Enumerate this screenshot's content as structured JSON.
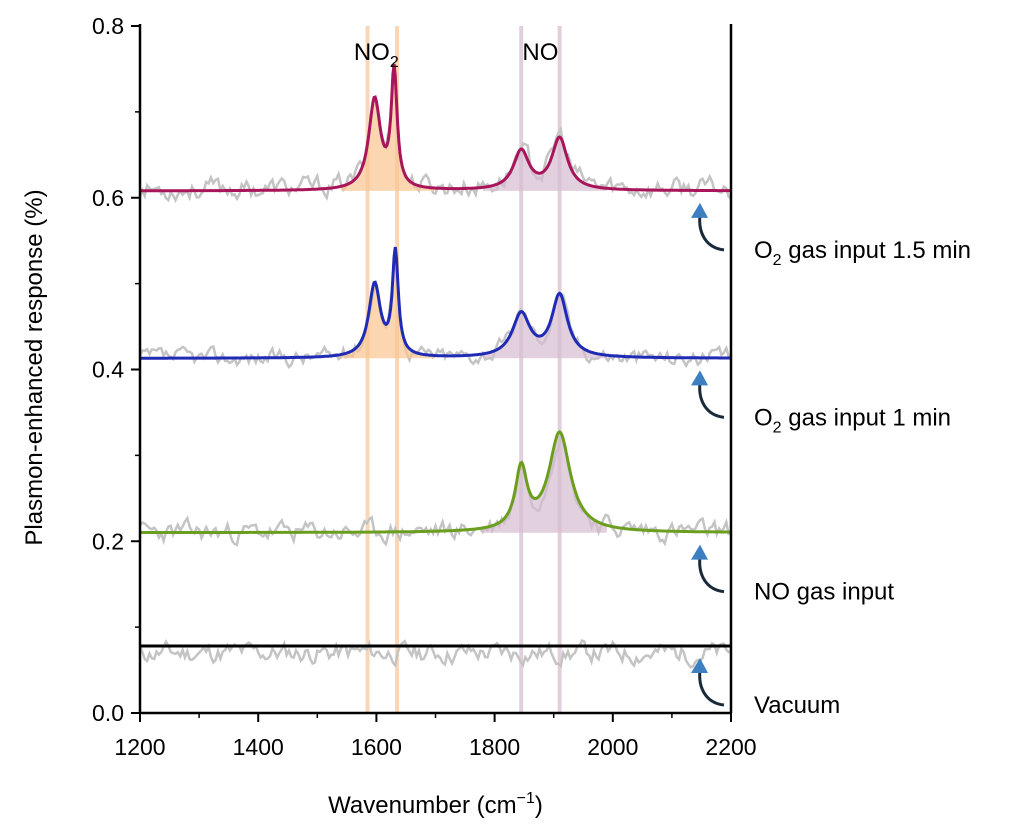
{
  "chart_data": {
    "type": "line",
    "title": "",
    "xlabel": "Wavenumber (cm",
    "xlabel_sup": "−1",
    "xlabel_close": ")",
    "ylabel": "Plasmon-enhanced response (%)",
    "xlim": [
      1200,
      2200
    ],
    "ylim": [
      0.0,
      0.8
    ],
    "xticks": [
      1200,
      1400,
      1600,
      1800,
      2000,
      2200
    ],
    "xtick_labels": [
      "1200",
      "1400",
      "1600",
      "1800",
      "2000",
      "2200"
    ],
    "yticks": [
      0.0,
      0.2,
      0.4,
      0.6,
      0.8
    ],
    "ytick_labels": [
      "0.0",
      "0.2",
      "0.4",
      "0.6",
      "0.8"
    ],
    "grid": false,
    "peak_bands": [
      {
        "name": "NO2",
        "label": "NO",
        "label_sub": "2",
        "positions": [
          1585,
          1635
        ],
        "color": "#f7c9a0"
      },
      {
        "name": "NO",
        "label": "NO",
        "label_sub": "",
        "positions": [
          1845,
          1910
        ],
        "color": "#d9c0d2"
      }
    ],
    "series": [
      {
        "name": "Vacuum",
        "label": "Vacuum",
        "label_sub": "",
        "label_suffix": "",
        "color": "#000000",
        "baseline": 0.078,
        "peaks": [],
        "fill_color": "none",
        "raw_baseline": 0.07,
        "raw_noise": 0.012,
        "raw_seed": 11
      },
      {
        "name": "NO gas input",
        "label": "NO gas input",
        "label_sub": "",
        "label_suffix": "",
        "color": "#6b9e1f",
        "baseline": 0.21,
        "peaks": [
          {
            "center": 1845,
            "height": 0.07,
            "width": 12
          },
          {
            "center": 1910,
            "height": 0.115,
            "width": 22
          }
        ],
        "fill_color": "#d9c0d2",
        "raw_baseline": 0.21,
        "raw_noise": 0.012,
        "raw_seed": 23
      },
      {
        "name": "O2 gas input 1 min",
        "label": "O",
        "label_sub": "2",
        "label_suffix": " gas input 1 min",
        "color": "#1f2bb5",
        "baseline": 0.413,
        "peaks": [
          {
            "center": 1597,
            "height": 0.085,
            "width": 12
          },
          {
            "center": 1632,
            "height": 0.12,
            "width": 6
          },
          {
            "center": 1845,
            "height": 0.05,
            "width": 18
          },
          {
            "center": 1910,
            "height": 0.072,
            "width": 16
          }
        ],
        "fill_color": "mixed",
        "raw_baseline": 0.413,
        "raw_noise": 0.01,
        "raw_seed": 37
      },
      {
        "name": "O2 gas input 1.5 min",
        "label": "O",
        "label_sub": "2",
        "label_suffix": " gas input 1.5 min",
        "color": "#a8155a",
        "baseline": 0.608,
        "peaks": [
          {
            "center": 1597,
            "height": 0.105,
            "width": 12
          },
          {
            "center": 1630,
            "height": 0.135,
            "width": 6
          },
          {
            "center": 1845,
            "height": 0.045,
            "width": 16
          },
          {
            "center": 1910,
            "height": 0.06,
            "width": 16
          }
        ],
        "fill_color": "mixed",
        "raw_baseline": 0.61,
        "raw_noise": 0.012,
        "raw_seed": 53
      }
    ]
  },
  "colors": {
    "raw": "#c4c4c4",
    "arrow_blue": "#3d7fc0",
    "arrow_dark": "#1b2a3a",
    "no2_fill": "#f9c590",
    "no_fill": "#d6bcd0"
  }
}
